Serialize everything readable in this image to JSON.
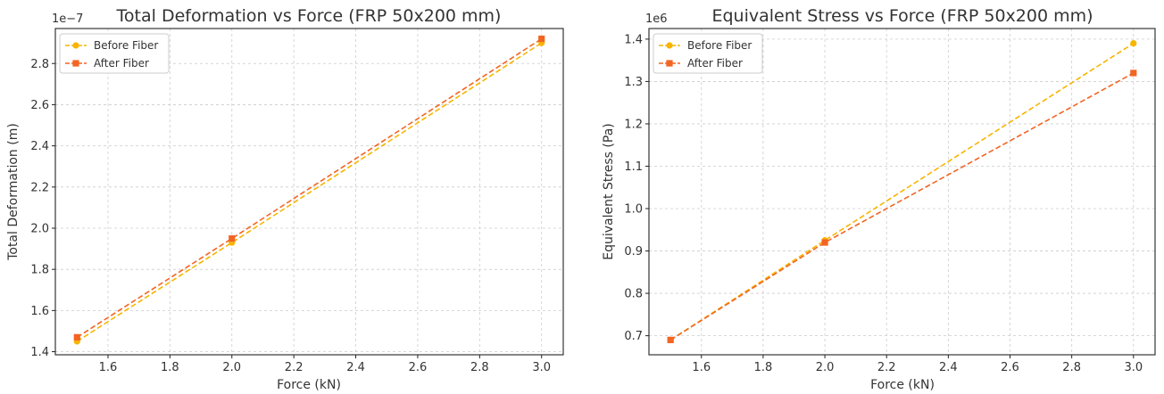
{
  "chart_data": [
    {
      "type": "line",
      "title": "Total Deformation vs Force (FRP 50x200 mm)",
      "xlabel": "Force (kN)",
      "ylabel": "Total Deformation (m)",
      "y_offset_label": "1e−7",
      "x": [
        1.5,
        2.0,
        3.0
      ],
      "xlim": [
        1.43,
        3.07
      ],
      "ylim": [
        1.385,
        2.97
      ],
      "x_ticks": [
        "1.6",
        "1.8",
        "2.0",
        "2.2",
        "2.4",
        "2.6",
        "2.8",
        "3.0"
      ],
      "y_ticks": [
        "1.4",
        "1.6",
        "1.8",
        "2.0",
        "2.2",
        "2.4",
        "2.6",
        "2.8"
      ],
      "grid": true,
      "legend_position": "top-left",
      "series": [
        {
          "name": "Before Fiber",
          "values": [
            1.45,
            1.93,
            2.9
          ],
          "color": "#F7B500",
          "marker": "circle"
        },
        {
          "name": "After Fiber",
          "values": [
            1.47,
            1.95,
            2.92
          ],
          "color": "#F26522",
          "marker": "square"
        }
      ]
    },
    {
      "type": "line",
      "title": "Equivalent Stress vs Force (FRP 50x200 mm)",
      "xlabel": "Force (kN)",
      "ylabel": "Equivalent Stress (Pa)",
      "y_offset_label": "1e6",
      "x": [
        1.5,
        2.0,
        3.0
      ],
      "xlim": [
        1.43,
        3.07
      ],
      "ylim": [
        0.655,
        1.425
      ],
      "x_ticks": [
        "1.6",
        "1.8",
        "2.0",
        "2.2",
        "2.4",
        "2.6",
        "2.8",
        "3.0"
      ],
      "y_ticks": [
        "0.7",
        "0.8",
        "0.9",
        "1.0",
        "1.1",
        "1.2",
        "1.3",
        "1.4"
      ],
      "grid": true,
      "legend_position": "top-left",
      "series": [
        {
          "name": "Before Fiber",
          "values": [
            0.69,
            0.925,
            1.39
          ],
          "color": "#F7B500",
          "marker": "circle"
        },
        {
          "name": "After Fiber",
          "values": [
            0.69,
            0.92,
            1.32
          ],
          "color": "#F26522",
          "marker": "square"
        }
      ]
    }
  ]
}
